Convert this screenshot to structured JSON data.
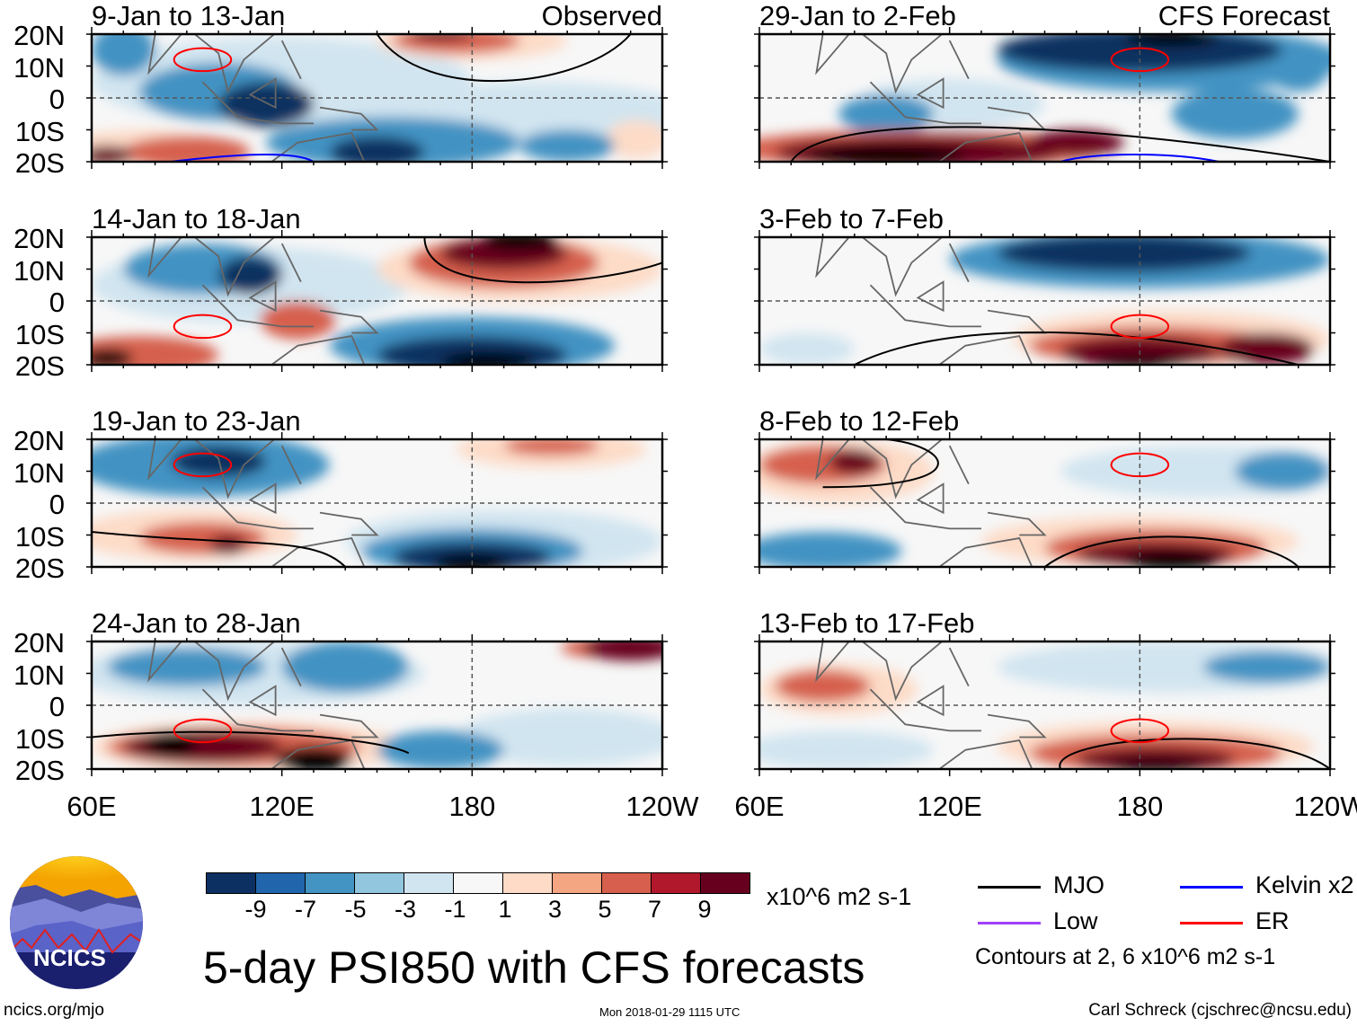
{
  "panels": [
    {
      "title": "9-Jan to 13-Jan",
      "tag": "Observed"
    },
    {
      "title": "14-Jan to 18-Jan",
      "tag": ""
    },
    {
      "title": "19-Jan to 23-Jan",
      "tag": ""
    },
    {
      "title": "24-Jan to 28-Jan",
      "tag": ""
    },
    {
      "title": "29-Jan to 2-Feb",
      "tag": "CFS Forecast"
    },
    {
      "title": "3-Feb to 7-Feb",
      "tag": ""
    },
    {
      "title": "8-Feb to 12-Feb",
      "tag": ""
    },
    {
      "title": "13-Feb to 17-Feb",
      "tag": ""
    }
  ],
  "lat_labels": [
    "20N",
    "10N",
    "0",
    "10S",
    "20S"
  ],
  "lon_labels": [
    "60E",
    "120E",
    "180",
    "120W"
  ],
  "colorbar": {
    "colors": [
      "#0b3061",
      "#2166ac",
      "#4393c3",
      "#92c5de",
      "#d1e5f0",
      "#f7f7f7",
      "#fddbc7",
      "#f4a582",
      "#d6604d",
      "#b2182b",
      "#67001f"
    ],
    "labels": [
      "-9",
      "-7",
      "-5",
      "-3",
      "-1",
      "1",
      "3",
      "5",
      "7",
      "9"
    ],
    "units": "x10^6 m2 s-1"
  },
  "legend": {
    "items": [
      {
        "label": "MJO",
        "color": "#000000"
      },
      {
        "label": "Kelvin x2",
        "color": "#0000ff"
      },
      {
        "label": "Low",
        "color": "#a040ff"
      },
      {
        "label": "ER",
        "color": "#ff0000"
      }
    ],
    "note": "Contours at 2, 6 x10^6 m2 s-1"
  },
  "title": "5-day PSI850 with CFS forecasts",
  "logo_text": "NCICS",
  "footer": {
    "url": "ncics.org/mjo",
    "timestamp": "Mon 2018-01-29 1115 UTC",
    "credit": "Carl Schreck (cjschrec@ncsu.edu)"
  },
  "chart_data": {
    "type": "heatmap",
    "variable": "850-hPa streamfunction anomaly (5-day mean)",
    "units": "x10^6 m2 s-1",
    "levels": [
      -9,
      -7,
      -5,
      -3,
      -1,
      1,
      3,
      5,
      7,
      9
    ],
    "lon_range": [
      "60E",
      "120W"
    ],
    "lat_range": [
      "20S",
      "20N"
    ]
  }
}
